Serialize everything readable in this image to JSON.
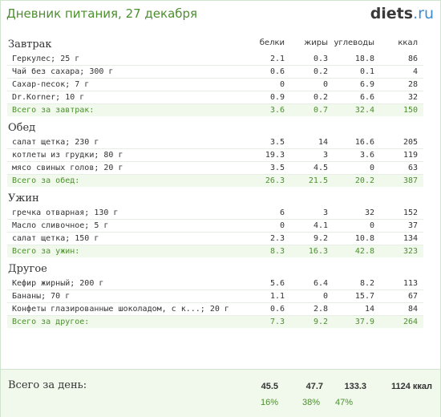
{
  "header": {
    "title": "Дневник питания, 27 декабря",
    "logo_main": "diets",
    "logo_tld": ".ru"
  },
  "columns": {
    "protein": "белки",
    "fat": "жиры",
    "carbs": "углеводы",
    "kcal": "ккал"
  },
  "meals": [
    {
      "title": "Завтрак",
      "items": [
        {
          "name": "Геркулес; 25 г",
          "protein": "2.1",
          "fat": "0.3",
          "carbs": "18.8",
          "kcal": "86"
        },
        {
          "name": "Чай без сахара; 300 г",
          "protein": "0.6",
          "fat": "0.2",
          "carbs": "0.1",
          "kcal": "4"
        },
        {
          "name": "Сахар-песок; 7 г",
          "protein": "0",
          "fat": "0",
          "carbs": "6.9",
          "kcal": "28"
        },
        {
          "name": "Dr.Korner; 10 г",
          "protein": "0.9",
          "fat": "0.2",
          "carbs": "6.6",
          "kcal": "32"
        }
      ],
      "total": {
        "label": "Всего за завтрак:",
        "protein": "3.6",
        "fat": "0.7",
        "carbs": "32.4",
        "kcal": "150"
      }
    },
    {
      "title": "Обед",
      "items": [
        {
          "name": "салат щетка; 230 г",
          "protein": "3.5",
          "fat": "14",
          "carbs": "16.6",
          "kcal": "205"
        },
        {
          "name": "котлеты из грудки; 80 г",
          "protein": "19.3",
          "fat": "3",
          "carbs": "3.6",
          "kcal": "119"
        },
        {
          "name": "мясо свиных голов; 20 г",
          "protein": "3.5",
          "fat": "4.5",
          "carbs": "0",
          "kcal": "63"
        }
      ],
      "total": {
        "label": "Всего за обед:",
        "protein": "26.3",
        "fat": "21.5",
        "carbs": "20.2",
        "kcal": "387"
      }
    },
    {
      "title": "Ужин",
      "items": [
        {
          "name": "гречка отварная; 130 г",
          "protein": "6",
          "fat": "3",
          "carbs": "32",
          "kcal": "152"
        },
        {
          "name": "Масло сливочное; 5 г",
          "protein": "0",
          "fat": "4.1",
          "carbs": "0",
          "kcal": "37"
        },
        {
          "name": "салат щетка; 150 г",
          "protein": "2.3",
          "fat": "9.2",
          "carbs": "10.8",
          "kcal": "134"
        }
      ],
      "total": {
        "label": "Всего за ужин:",
        "protein": "8.3",
        "fat": "16.3",
        "carbs": "42.8",
        "kcal": "323"
      }
    },
    {
      "title": "Другое",
      "items": [
        {
          "name": "Кефир жирный; 200 г",
          "protein": "5.6",
          "fat": "6.4",
          "carbs": "8.2",
          "kcal": "113"
        },
        {
          "name": "Бананы; 70 г",
          "protein": "1.1",
          "fat": "0",
          "carbs": "15.7",
          "kcal": "67"
        },
        {
          "name": "Конфеты глазированные шоколадом, с к...; 20 г",
          "protein": "0.6",
          "fat": "2.8",
          "carbs": "14",
          "kcal": "84"
        }
      ],
      "total": {
        "label": "Всего за другое:",
        "protein": "7.3",
        "fat": "9.2",
        "carbs": "37.9",
        "kcal": "264"
      }
    }
  ],
  "day": {
    "label": "Всего за день:",
    "protein": "45.5",
    "fat": "47.7",
    "carbs": "133.3",
    "kcal": "1124 ккал",
    "protein_pct": "16%",
    "fat_pct": "38%",
    "carbs_pct": "47%"
  }
}
